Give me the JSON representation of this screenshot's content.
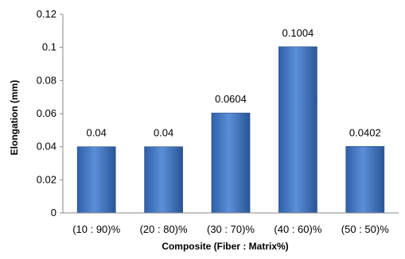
{
  "chart_data": {
    "type": "bar",
    "xlabel": "Composite  (Fiber : Matrix%)",
    "ylabel": "Elongation (mm)",
    "categories": [
      "(10 : 90)%",
      "(20 : 80)%",
      "(30 : 70)%",
      "(40 : 60)%",
      "(50 : 50)%"
    ],
    "values": [
      0.04,
      0.04,
      0.0604,
      0.1004,
      0.0402
    ],
    "data_labels": [
      "0.04",
      "0.04",
      "0.0604",
      "0.1004",
      "0.0402"
    ],
    "ylim": [
      0,
      0.12
    ],
    "yticks": [
      0,
      0.02,
      0.04,
      0.06,
      0.08,
      0.1,
      0.12
    ],
    "ytick_labels": [
      "0",
      "0.02",
      "0.04",
      "0.06",
      "0.08",
      "0.1",
      "0.12"
    ],
    "grid": false,
    "bar_color": "#4a7cc8"
  }
}
